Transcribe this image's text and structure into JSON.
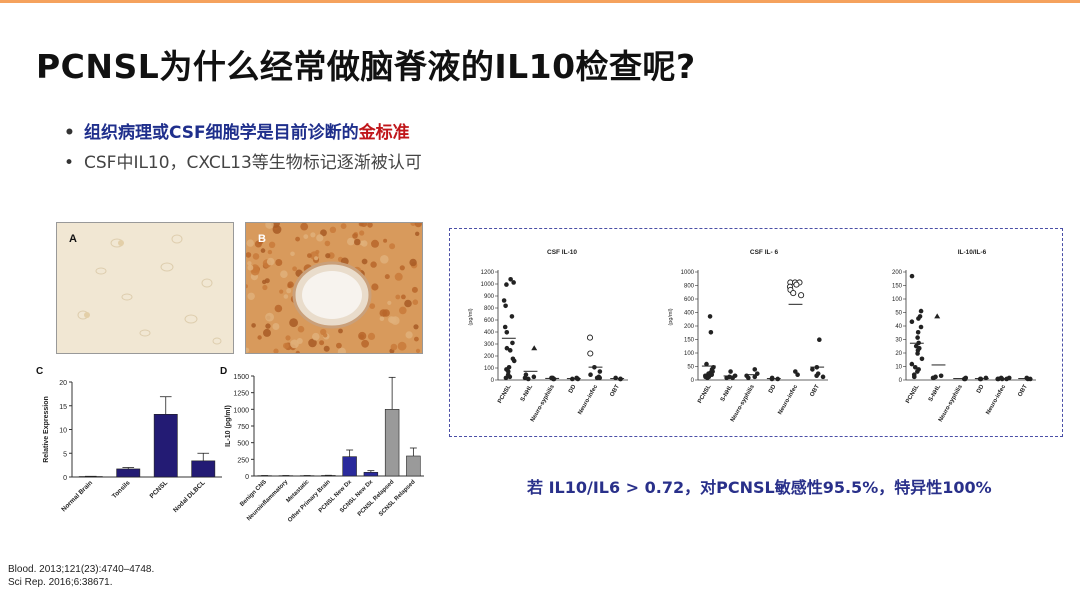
{
  "slide": {
    "title": "PCNSL为什么经常做脑脊液的IL10检查呢?",
    "bullets": [
      {
        "prefix": "组织病理或CSF细胞学是目前诊断的",
        "highlight": "金标准",
        "highlight_color": "#c0161a",
        "color": "#1f2f8c"
      },
      {
        "text": "CSF中IL10，CXCL13等生物标记逐渐被认可",
        "color": "#444444"
      }
    ],
    "note": "若 IL10/IL6 > 0.72，对PCNSL敏感性95.5%，特异性100%",
    "references": [
      "Blood. 2013;121(23):4740–4748.",
      "Sci Rep. 2016;6:38671."
    ]
  },
  "panels": {
    "a_label": "A",
    "b_label": "B",
    "c_label": "C",
    "d_label": "D"
  },
  "chart_data": [
    {
      "id": "C",
      "type": "bar",
      "ylabel": "Relative Expression",
      "ylim": [
        0,
        20
      ],
      "yticks": [
        0,
        5,
        10,
        15,
        20
      ],
      "categories": [
        "Normal Brain",
        "Tonsils",
        "PCNSL",
        "Nodal DLBCL"
      ],
      "values": [
        0.1,
        1.7,
        13.2,
        3.4
      ],
      "errors": [
        0.05,
        0.3,
        3.7,
        1.6
      ],
      "bar_color": "#231b74"
    },
    {
      "id": "D",
      "type": "bar",
      "ylabel": "IL-10 (pg/ml)",
      "ylim": [
        0,
        1500
      ],
      "yticks": [
        0,
        250,
        500,
        750,
        1000,
        1250,
        1500
      ],
      "categories": [
        "Benign CNS",
        "Neuroinflammatory",
        "Metastatic",
        "Other Primary Brain",
        "PCNSL New Dx",
        "SCNSL New Dx",
        "PCNSL Relapsed",
        "SCNSL Relapsed"
      ],
      "values": [
        5,
        5,
        5,
        8,
        290,
        55,
        1000,
        300
      ],
      "errors": [
        2,
        2,
        2,
        3,
        100,
        25,
        480,
        120
      ],
      "colors": [
        "#888888",
        "#888888",
        "#888888",
        "#888888",
        "#2a2a9c",
        "#2a2a9c",
        "#9a9a9a",
        "#9a9a9a"
      ]
    },
    {
      "id": "CSF IL-10",
      "type": "scatter",
      "title": "CSF IL-10",
      "ylabel": "(pg/ml)",
      "yticks": [
        "0",
        "100",
        "200",
        "300",
        "400",
        "600",
        "800",
        "900",
        "1000",
        "1200"
      ],
      "categories": [
        "PCNSL",
        "S-NHL",
        "Neuro-syphilis",
        "DD",
        "Neuro-infec",
        "OBT"
      ],
      "means": [
        215,
        5,
        3,
        3,
        25,
        3
      ]
    },
    {
      "id": "CSF IL-6",
      "type": "scatter",
      "title": "CSF IL- 6",
      "ylabel": "(pg/ml)",
      "yticks": [
        "0",
        "50",
        "100",
        "150",
        "200",
        "400",
        "600",
        "800",
        "1000"
      ],
      "categories": [
        "PCNSL",
        "S-NHL",
        "Neuro-syphilis",
        "DD",
        "Neuro-infec",
        "OBT"
      ],
      "means": [
        12,
        4,
        6,
        3,
        550,
        15
      ]
    },
    {
      "id": "IL-10/IL-6",
      "type": "scatter",
      "title": "IL-10/IL-6",
      "yticks": [
        "0",
        "10",
        "20",
        "30",
        "40",
        "50",
        "100",
        "150",
        "200"
      ],
      "categories": [
        "PCNSL",
        "S-NHL",
        "Neuro-syphilis",
        "DD",
        "Neuro-infec",
        "OBT"
      ],
      "means": [
        24,
        1,
        0.5,
        0.5,
        0.5,
        0.5
      ]
    }
  ]
}
